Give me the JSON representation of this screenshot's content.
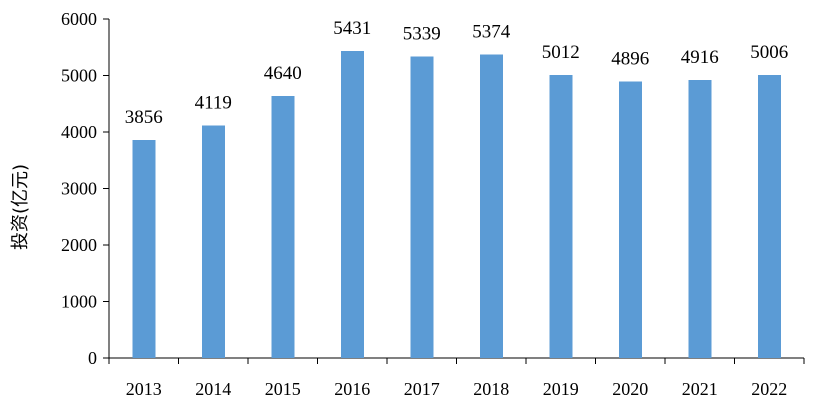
{
  "chart_data": {
    "type": "bar",
    "categories": [
      "2013",
      "2014",
      "2015",
      "2016",
      "2017",
      "2018",
      "2019",
      "2020",
      "2021",
      "2022"
    ],
    "series": [
      {
        "values": [
          3856,
          4119,
          4640,
          5431,
          5339,
          5374,
          5012,
          4896,
          4916,
          5006
        ]
      }
    ],
    "data_labels": [
      "3856",
      "4119",
      "4640",
      "5431",
      "5339",
      "5374",
      "5012",
      "4896",
      "4916",
      "5006"
    ],
    "ylabel": "投资(亿元)",
    "xlabel": "",
    "ylim": [
      0,
      6000
    ],
    "yticks": [
      0,
      1000,
      2000,
      3000,
      4000,
      5000,
      6000
    ],
    "grid": false,
    "legend": "none",
    "bar_color": "#5B9BD5"
  }
}
